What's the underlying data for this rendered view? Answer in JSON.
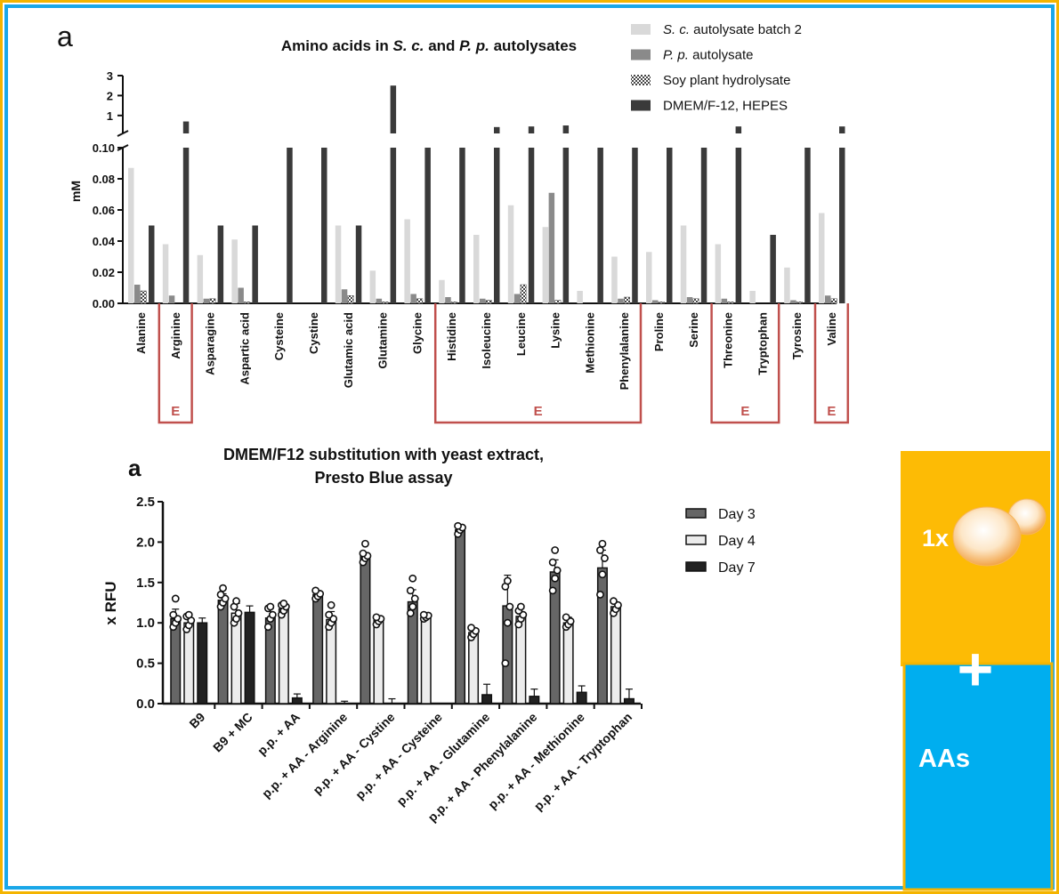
{
  "top_panel_label": "a",
  "bottom_panel_label": "a",
  "colors": {
    "frame_outer": "#f4b400",
    "frame_inner": "#1aa7e8",
    "yellow_panel": "#fdbb05",
    "blue_panel": "#00aeef",
    "bracket": "#c0504d"
  },
  "side_panel": {
    "yeast_label": "1x",
    "plus": "+",
    "aa_label": "AAs",
    "yeast_icon": "yeast-cell-icon"
  },
  "chart_data": [
    {
      "type": "bar",
      "title_parts": [
        "Amino acids in ",
        "S. c.",
        " and ",
        "P. p.",
        " autolysates"
      ],
      "ylabel": "mM",
      "ylim_lower": [
        0,
        0.1
      ],
      "lower_ticks": [
        "0.00",
        "0.02",
        "0.04",
        "0.06",
        "0.08",
        "0.10"
      ],
      "ylim_upper": [
        0.1,
        3
      ],
      "upper_ticks": [
        "1",
        "2",
        "3"
      ],
      "legend": [
        {
          "italic": "S. c.",
          "text": " autolysate batch 2",
          "color": "#d9d9d9",
          "pattern": false
        },
        {
          "italic": "P. p.",
          "text": " autolysate",
          "color": "#8a8a8a",
          "pattern": false
        },
        {
          "italic": "",
          "text": "Soy plant hydrolysate",
          "color": "#bbbbbb",
          "pattern": true
        },
        {
          "italic": "",
          "text": "DMEM/F-12, HEPES",
          "color": "#3a3a3a",
          "pattern": false
        }
      ],
      "categories": [
        "Alanine",
        "Arginine",
        "Asparagine",
        "Aspartic acid",
        "Cysteine",
        "Cystine",
        "Glutamic acid",
        "Glutamine",
        "Glycine",
        "Histidine",
        "Isoleucine",
        "Leucine",
        "Lysine",
        "Methionine",
        "Phenylalanine",
        "Proline",
        "Serine",
        "Threonine",
        "Tryptophan",
        "Tyrosine",
        "Valine"
      ],
      "series": [
        {
          "name": "S. c. autolysate batch 2",
          "values": [
            0.087,
            0.038,
            0.031,
            0.041,
            0,
            0,
            0.05,
            0.021,
            0.054,
            0.015,
            0.044,
            0.063,
            0.049,
            0.008,
            0.03,
            0.033,
            0.05,
            0.038,
            0.008,
            0.023,
            0.058
          ]
        },
        {
          "name": "P. p. autolysate",
          "values": [
            0.012,
            0.005,
            0.003,
            0.01,
            0,
            0,
            0.009,
            0.003,
            0.006,
            0.004,
            0.003,
            0.006,
            0.071,
            0,
            0.003,
            0.002,
            0.004,
            0.003,
            0,
            0.002,
            0.005
          ]
        },
        {
          "name": "Soy plant hydrolysate",
          "values": [
            0.008,
            0,
            0.003,
            0.001,
            0,
            0,
            0.005,
            0.001,
            0.003,
            0.001,
            0.002,
            0.012,
            0.002,
            0,
            0.004,
            0.001,
            0.003,
            0.001,
            0,
            0.001,
            0.003
          ]
        },
        {
          "name": "DMEM/F-12, HEPES",
          "values": [
            0.05,
            0.7,
            0.05,
            0.05,
            0.1,
            0.1,
            0.05,
            2.5,
            0.1,
            0.1,
            0.42,
            0.45,
            0.5,
            0.1,
            0.1,
            0.1,
            0.1,
            0.45,
            0.044,
            0.1,
            0.45
          ]
        }
      ],
      "essential_groups": [
        {
          "label": "E",
          "members": [
            "Arginine"
          ]
        },
        {
          "label": "E",
          "members": [
            "Histidine",
            "Isoleucine",
            "Leucine",
            "Lysine",
            "Methionine",
            "Phenylalanine"
          ]
        },
        {
          "label": "E",
          "members": [
            "Threonine",
            "Tryptophan"
          ]
        },
        {
          "label": "E",
          "members": [
            "Valine"
          ]
        }
      ]
    },
    {
      "type": "bar",
      "title": "DMEM/F12 substitution with yeast extract,",
      "subtitle": "Presto Blue assay",
      "ylabel": "x RFU",
      "ylim": [
        0,
        2.5
      ],
      "yticks": [
        "0.0",
        "0.5",
        "1.0",
        "1.5",
        "2.0",
        "2.5"
      ],
      "categories": [
        "B9",
        "B9 + MC",
        "p.p. + AA",
        "p.p. + AA - Arginine",
        "p.p. + AA - Cystine",
        "p.p. + AA - Cysteine",
        "p.p. + AA - Glutamine",
        "p.p. + AA - Phenylalanine",
        "p.p. + AA - Methionine",
        "p.p. + AA - Tryptophan"
      ],
      "series": [
        {
          "name": "Day 3",
          "color": "#666666",
          "values": [
            1.05,
            1.28,
            1.06,
            1.35,
            1.82,
            1.26,
            2.15,
            1.21,
            1.63,
            1.68
          ],
          "errors": [
            0.12,
            0.08,
            0.12,
            0.05,
            0.05,
            0.15,
            0.04,
            0.38,
            0.15,
            0.22
          ],
          "points": [
            [
              0.95,
              1.0,
              1.05,
              1.1,
              1.3
            ],
            [
              1.2,
              1.25,
              1.3,
              1.35,
              1.43
            ],
            [
              0.95,
              1.05,
              1.1,
              1.18,
              1.2
            ],
            [
              1.3,
              1.33,
              1.36,
              1.4
            ],
            [
              1.75,
              1.8,
              1.83,
              1.86,
              1.98
            ],
            [
              1.12,
              1.2,
              1.3,
              1.4,
              1.55
            ],
            [
              2.1,
              2.15,
              2.18,
              2.2
            ],
            [
              0.5,
              1.0,
              1.2,
              1.45,
              1.52
            ],
            [
              1.4,
              1.55,
              1.65,
              1.75,
              1.9
            ],
            [
              1.35,
              1.6,
              1.8,
              1.9,
              1.98
            ]
          ]
        },
        {
          "name": "Day 4",
          "color": "#ececec",
          "values": [
            1.0,
            1.12,
            1.17,
            1.04,
            1.03,
            1.08,
            0.88,
            1.08,
            1.0,
            1.2
          ],
          "errors": [
            0.1,
            0.12,
            0.08,
            0.1,
            0.05,
            0.03,
            0.05,
            0.1,
            0.07,
            0.06
          ],
          "points": [
            [
              0.92,
              0.97,
              1.03,
              1.08,
              1.1
            ],
            [
              1.0,
              1.05,
              1.12,
              1.2,
              1.27
            ],
            [
              1.1,
              1.15,
              1.2,
              1.22,
              1.24
            ],
            [
              0.95,
              1.0,
              1.05,
              1.1,
              1.22
            ],
            [
              0.98,
              1.02,
              1.05,
              1.07
            ],
            [
              1.05,
              1.07,
              1.09,
              1.1
            ],
            [
              0.82,
              0.86,
              0.9,
              0.94
            ],
            [
              0.98,
              1.05,
              1.1,
              1.15,
              1.2
            ],
            [
              0.95,
              0.98,
              1.02,
              1.07
            ],
            [
              1.12,
              1.17,
              1.22,
              1.27
            ]
          ]
        },
        {
          "name": "Day 7",
          "color": "#222222",
          "values": [
            1.0,
            1.13,
            0.07,
            0.0,
            0.0,
            null,
            0.11,
            0.09,
            0.14,
            0.06
          ],
          "errors": [
            0.06,
            0.08,
            0.05,
            0.03,
            0.06,
            null,
            0.13,
            0.09,
            0.08,
            0.12
          ],
          "points": [
            [],
            [],
            [],
            [],
            [],
            [],
            [],
            [],
            [],
            []
          ]
        }
      ]
    }
  ]
}
